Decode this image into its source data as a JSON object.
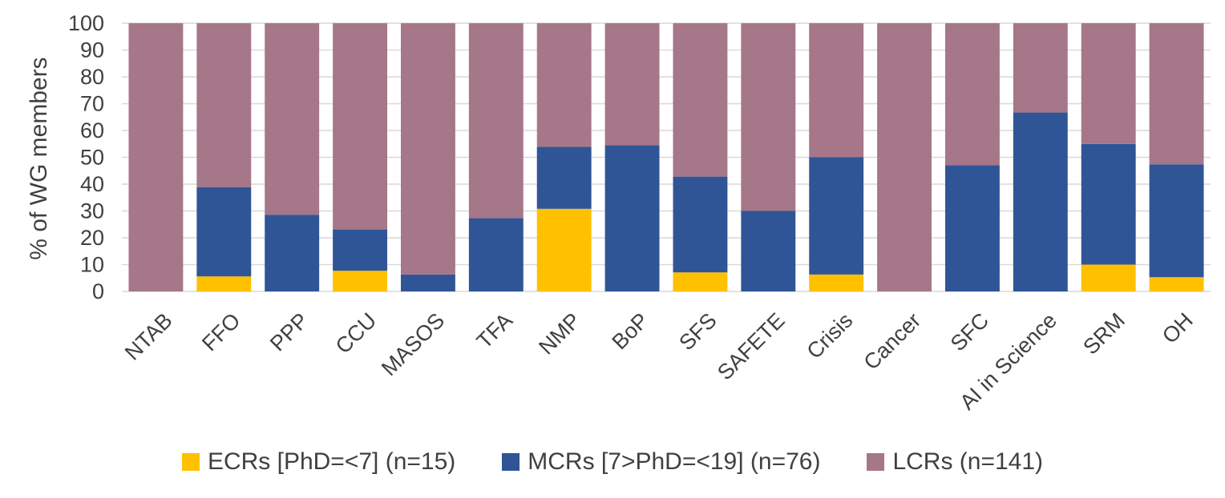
{
  "chart_data": {
    "type": "bar",
    "stacked": true,
    "ylabel": "% of WG members",
    "ylim": [
      0,
      100
    ],
    "yticks": [
      0,
      10,
      20,
      30,
      40,
      50,
      60,
      70,
      80,
      90,
      100
    ],
    "grid": true,
    "legend_position": "bottom",
    "categories": [
      "NTAB",
      "FFO",
      "PPP",
      "CCU",
      "MASOS",
      "TFA",
      "NMP",
      "BoP",
      "SFS",
      "SAFETE",
      "Crisis",
      "Cancer",
      "SFC",
      "AI in Science",
      "SRM",
      "OH"
    ],
    "series": [
      {
        "name": "ECRs [PhD=<7] (n=15)",
        "color": "#ffc000",
        "values": [
          0,
          5.6,
          0,
          7.7,
          0,
          0,
          30.8,
          0,
          7.1,
          0,
          6.3,
          0,
          0,
          0,
          10,
          5.3
        ]
      },
      {
        "name": "MCRs [7>PhD=<19] (n=76)",
        "color": "#2f5597",
        "values": [
          0,
          33.3,
          28.6,
          15.4,
          6.3,
          27.3,
          23.1,
          54.5,
          35.7,
          30,
          43.8,
          0,
          47.1,
          66.7,
          45,
          42.1
        ]
      },
      {
        "name": "LCRs (n=141)",
        "color": "#a67689",
        "values": [
          100,
          61.1,
          71.4,
          76.9,
          93.7,
          72.7,
          46.1,
          45.5,
          57.2,
          70,
          49.9,
          100,
          52.9,
          33.3,
          45,
          52.6
        ]
      }
    ]
  }
}
